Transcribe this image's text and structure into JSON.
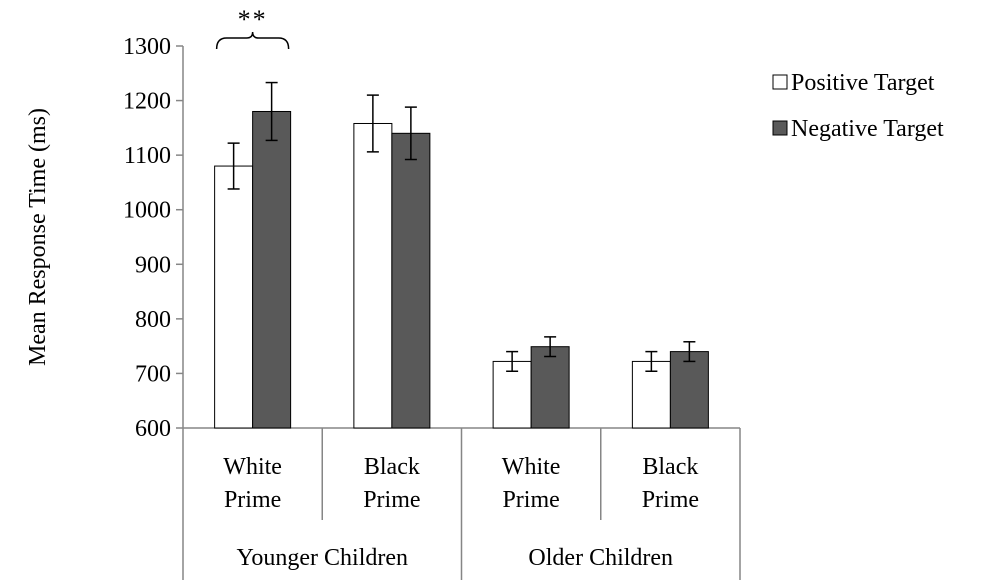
{
  "chart_data": {
    "type": "bar",
    "ylabel": "Mean Response Time (ms)",
    "ylim": [
      600,
      1300
    ],
    "ytick_step": 100,
    "yticks": [
      "600",
      "700",
      "800",
      "900",
      "1000",
      "1100",
      "1200",
      "1300"
    ],
    "grid": false,
    "legend_position": "top-right",
    "groups": [
      {
        "label": "Younger Children",
        "categories": [
          {
            "label_line1": "White",
            "label_line2": "Prime"
          },
          {
            "label_line1": "Black",
            "label_line2": "Prime"
          }
        ]
      },
      {
        "label": "Older Children",
        "categories": [
          {
            "label_line1": "White",
            "label_line2": "Prime"
          },
          {
            "label_line1": "Black",
            "label_line2": "Prime"
          }
        ]
      }
    ],
    "series": [
      {
        "name": "Positive Target",
        "color": "#ffffff",
        "values": [
          1080,
          1158,
          722,
          722
        ],
        "error": [
          42,
          52,
          18,
          18
        ]
      },
      {
        "name": "Negative Target",
        "color": "#595959",
        "values": [
          1180,
          1140,
          749,
          740
        ],
        "error": [
          53,
          48,
          18,
          18
        ]
      }
    ],
    "annotations": [
      {
        "text": "**",
        "category_index": 0
      }
    ]
  }
}
